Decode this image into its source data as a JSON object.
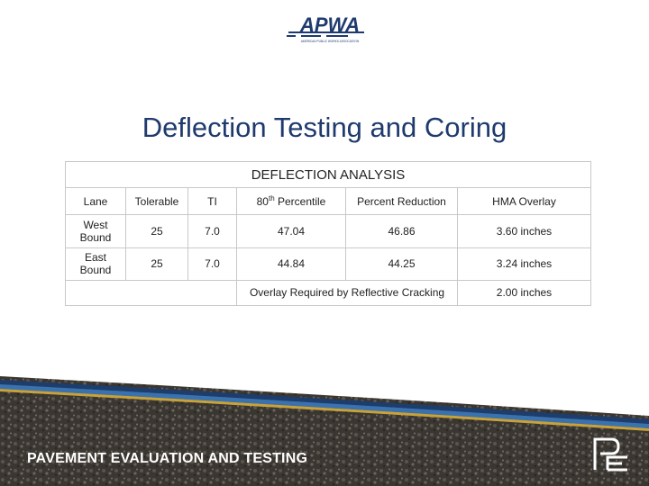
{
  "logo": {
    "text": "APWA",
    "tagline": "AMERICAN PUBLIC WORKS ASSOCIATION"
  },
  "title": "Deflection Testing and Coring",
  "table": {
    "caption": "DEFLECTION ANALYSIS",
    "headers": {
      "lane": "Lane",
      "tolerable": "Tolerable",
      "ti": "TI",
      "percentile_num": "80",
      "percentile_sup": "th",
      "percentile_rest": " Percentile",
      "reduction": "Percent Reduction",
      "overlay": "HMA Overlay"
    },
    "rows": [
      {
        "lane": "West Bound",
        "tolerable": "25",
        "ti": "7.0",
        "percentile": "47.04",
        "reduction": "46.86",
        "overlay": "3.60 inches"
      },
      {
        "lane": "East Bound",
        "tolerable": "25",
        "ti": "7.0",
        "percentile": "44.84",
        "reduction": "44.25",
        "overlay": "3.24 inches"
      }
    ],
    "summary": {
      "label": "Overlay Required by Reflective Cracking",
      "value": "2.00 inches"
    }
  },
  "footer": {
    "text": "PAVEMENT EVALUATION AND TESTING",
    "logo_glyph": "PE"
  },
  "colors": {
    "title": "#1f3a6e",
    "band_dark": "#1d3d6d",
    "band_blue": "#3a72b0",
    "band_gold": "#c8a23a",
    "pavement": "#3a3631"
  }
}
